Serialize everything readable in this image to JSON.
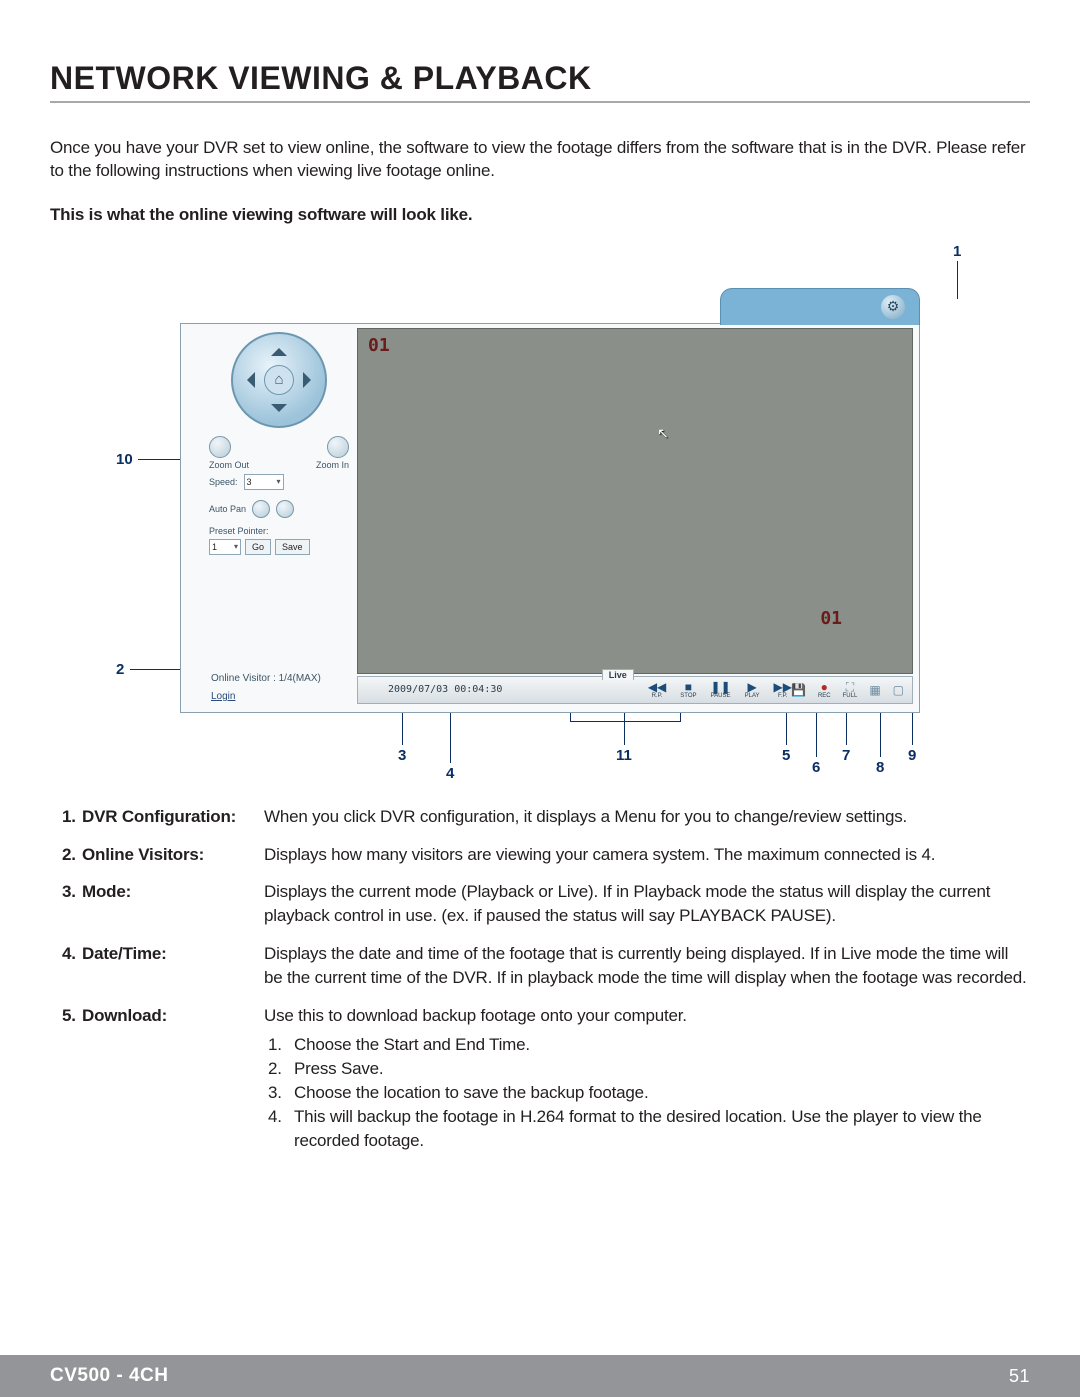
{
  "section_title": "NETWORK VIEWING & PLAYBACK",
  "intro_text": "Once you have your DVR set to view online, the software to view the footage differs from the software that is in the DVR. Please refer to the following instructions when viewing live footage online.",
  "subhead": "This is what the online viewing software will look like.",
  "callouts": {
    "c1": "1",
    "c2": "2",
    "c3": "3",
    "c4": "4",
    "c5": "5",
    "c6": "6",
    "c7": "7",
    "c8": "8",
    "c9": "9",
    "c10": "10",
    "c11": "11"
  },
  "app": {
    "osd_channel": "01",
    "osd_overlay": "01",
    "zoom_out": "Zoom Out",
    "zoom_in": "Zoom In",
    "speed_label": "Speed:",
    "speed_value": "3",
    "auto_pan": "Auto Pan",
    "preset_label": "Preset Pointer:",
    "preset_value": "1",
    "go_btn": "Go",
    "save_btn": "Save",
    "visitor_text": "Online Visitor : 1/4(MAX)",
    "login_text": "Login",
    "mode_text": "Live",
    "datetime": "2009/07/03 00:04:30",
    "pb": {
      "rr": "R.P.",
      "stop": "STOP",
      "pause": "PAUSE",
      "play": "PLAY",
      "ff": "F.P."
    },
    "rc": {
      "dl": "",
      "rec": "REC",
      "full": "FULL",
      "g1": "",
      "g2": ""
    }
  },
  "items": [
    {
      "num": "1.",
      "term": "DVR Configuration:",
      "desc": "When you click DVR configuration, it displays a Menu for you to change/review settings."
    },
    {
      "num": "2.",
      "term": "Online Visitors:",
      "desc": "Displays how many visitors are viewing your camera system. The maximum connected is 4."
    },
    {
      "num": "3.",
      "term": "Mode:",
      "desc": "Displays the current mode (Playback or Live). If in Playback mode the status will display the current playback control in use.  (ex. if paused the status will say PLAYBACK PAUSE)."
    },
    {
      "num": "4.",
      "term": "Date/Time:",
      "desc": "Displays the date and time of the footage that is currently being displayed. If in Live mode the time will be the current time of the DVR. If in playback mode the time will display when the footage was recorded."
    },
    {
      "num": "5.",
      "term": "Download:",
      "desc": "Use this to download backup footage onto your computer.",
      "sub": [
        {
          "n": "1.",
          "t": "Choose the Start and End Time."
        },
        {
          "n": "2.",
          "t": "Press Save."
        },
        {
          "n": "3.",
          "t": "Choose the location to save the backup footage."
        },
        {
          "n": "4.",
          "t": "This will backup the footage in H.264 format to the desired location. Use the player to view the recorded footage."
        }
      ]
    }
  ],
  "footer": {
    "model": "CV500 - 4CH",
    "page": "51"
  },
  "colors": {
    "title_rule": "#a7a9ac",
    "callout": "#0b2e63",
    "footer_bg": "#939598",
    "video_bg": "#8a9089",
    "tab_bg": "#7ab3d6",
    "osd_text": "#6a1b1b"
  }
}
